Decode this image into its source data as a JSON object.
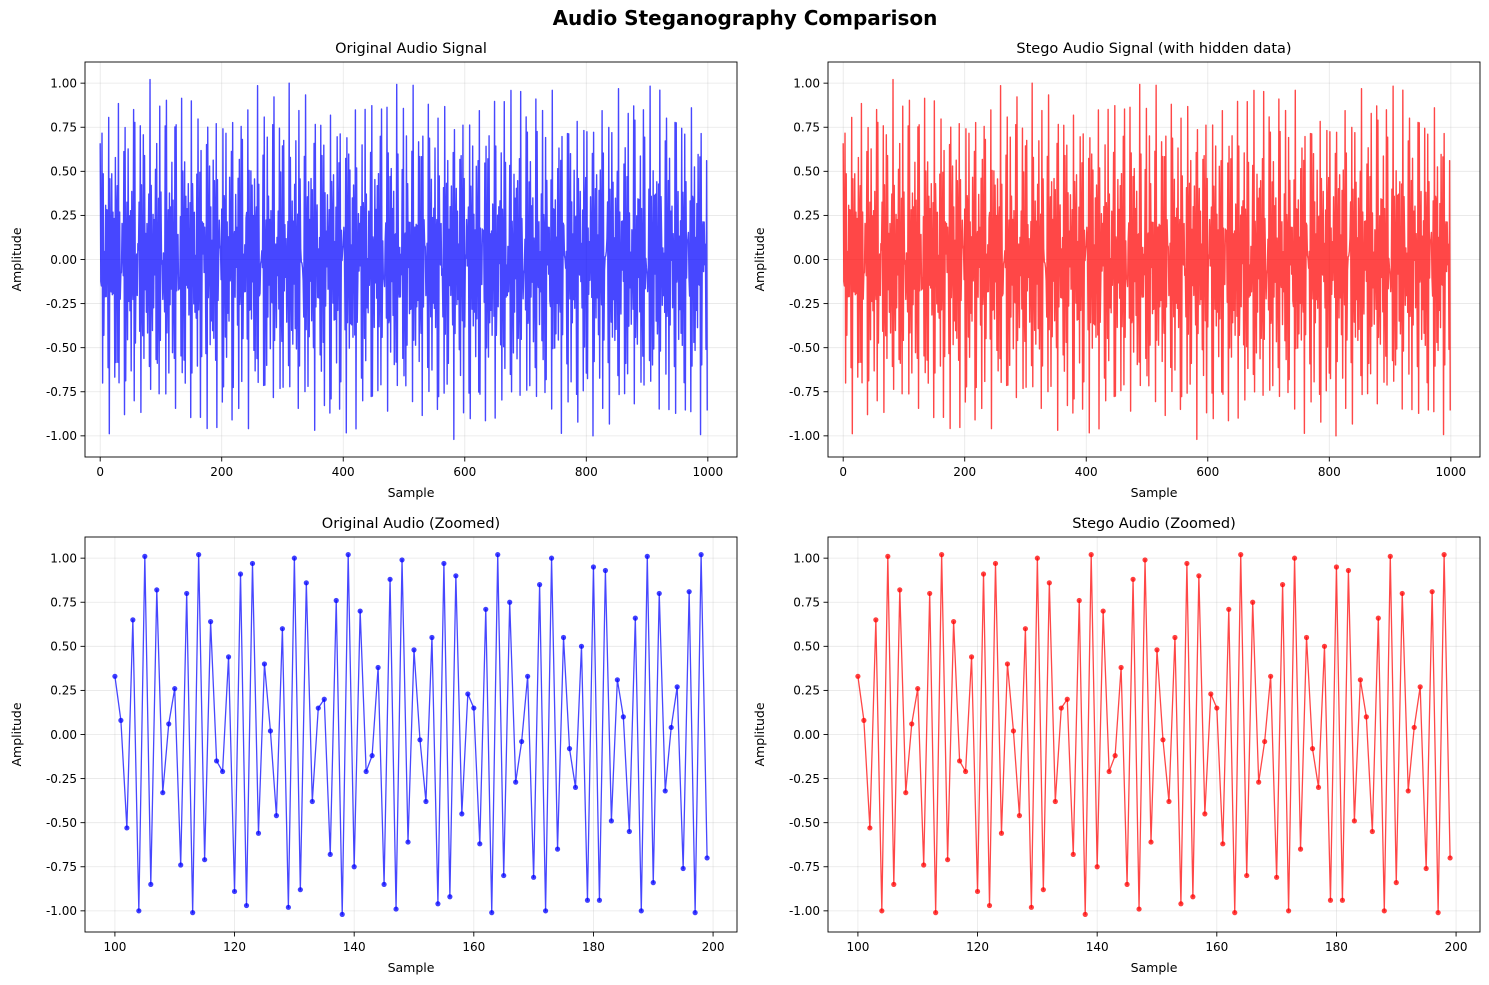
{
  "figure": {
    "title": "Audio Steganography Comparison"
  },
  "chart_data": [
    {
      "type": "line",
      "title": "Original Audio Signal",
      "xlabel": "Sample",
      "ylabel": "Amplitude",
      "xlim": [
        -25,
        1048
      ],
      "ylim": [
        -1.12,
        1.12
      ],
      "xticks": [
        0,
        200,
        400,
        600,
        800,
        1000
      ],
      "yticks": [
        -1.0,
        -0.75,
        -0.5,
        -0.25,
        0.0,
        0.25,
        0.5,
        0.75,
        1.0
      ],
      "grid": true,
      "color": "#0000ff",
      "markers": false,
      "series": [
        {
          "name": "original",
          "generator": "audio",
          "x_start": 0,
          "x_end": 999
        }
      ]
    },
    {
      "type": "line",
      "title": "Stego Audio Signal (with hidden data)",
      "xlabel": "Sample",
      "ylabel": "Amplitude",
      "xlim": [
        -25,
        1048
      ],
      "ylim": [
        -1.12,
        1.12
      ],
      "xticks": [
        0,
        200,
        400,
        600,
        800,
        1000
      ],
      "yticks": [
        -1.0,
        -0.75,
        -0.5,
        -0.25,
        0.0,
        0.25,
        0.5,
        0.75,
        1.0
      ],
      "grid": true,
      "color": "#ff0000",
      "markers": false,
      "series": [
        {
          "name": "stego",
          "generator": "audio",
          "x_start": 0,
          "x_end": 999
        }
      ]
    },
    {
      "type": "line",
      "title": "Original Audio (Zoomed)",
      "xlabel": "Sample",
      "ylabel": "Amplitude",
      "xlim": [
        95,
        204
      ],
      "ylim": [
        -1.12,
        1.12
      ],
      "xticks": [
        100,
        120,
        140,
        160,
        180,
        200
      ],
      "yticks": [
        -1.0,
        -0.75,
        -0.5,
        -0.25,
        0.0,
        0.25,
        0.5,
        0.75,
        1.0
      ],
      "grid": true,
      "color": "#0000ff",
      "markers": true,
      "series": [
        {
          "name": "original_zoom",
          "x_start": 100,
          "values": [
            0.33,
            0.08,
            -0.53,
            0.65,
            -1.0,
            1.01,
            -0.85,
            0.82,
            -0.33,
            0.06,
            0.26,
            -0.74,
            0.8,
            -1.01,
            1.02,
            -0.71,
            0.64,
            -0.15,
            -0.21,
            0.44,
            -0.89,
            0.91,
            -0.97,
            0.97,
            -0.56,
            0.4,
            0.02,
            -0.46,
            0.6,
            -0.98,
            1.0,
            -0.88,
            0.86,
            -0.38,
            0.15,
            0.2,
            -0.68,
            0.76,
            -1.02,
            1.02,
            -0.75,
            0.7,
            -0.21,
            -0.12,
            0.38,
            -0.85,
            0.88,
            -0.99,
            0.99,
            -0.61,
            0.48,
            -0.03,
            -0.38,
            0.55,
            -0.96,
            0.97,
            -0.92,
            0.9,
            -0.45,
            0.23,
            0.15,
            -0.62,
            0.71,
            -1.01,
            1.02,
            -0.8,
            0.75,
            -0.27,
            -0.04,
            0.33,
            -0.81,
            0.85,
            -1.0,
            1.0,
            -0.65,
            0.55,
            -0.08,
            -0.3,
            0.5,
            -0.94,
            0.95,
            -0.94,
            0.93,
            -0.49,
            0.31,
            0.1,
            -0.55,
            0.66,
            -1.0,
            1.01,
            -0.84,
            0.8,
            -0.32,
            0.04,
            0.27,
            -0.76,
            0.81,
            -1.01,
            1.02,
            -0.7
          ]
        }
      ]
    },
    {
      "type": "line",
      "title": "Stego Audio (Zoomed)",
      "xlabel": "Sample",
      "ylabel": "Amplitude",
      "xlim": [
        95,
        204
      ],
      "ylim": [
        -1.12,
        1.12
      ],
      "xticks": [
        100,
        120,
        140,
        160,
        180,
        200
      ],
      "yticks": [
        -1.0,
        -0.75,
        -0.5,
        -0.25,
        0.0,
        0.25,
        0.5,
        0.75,
        1.0
      ],
      "grid": true,
      "color": "#ff0000",
      "markers": true,
      "series": [
        {
          "name": "stego_zoom",
          "x_start": 100,
          "values": [
            0.33,
            0.08,
            -0.53,
            0.65,
            -1.0,
            1.01,
            -0.85,
            0.82,
            -0.33,
            0.06,
            0.26,
            -0.74,
            0.8,
            -1.01,
            1.02,
            -0.71,
            0.64,
            -0.15,
            -0.21,
            0.44,
            -0.89,
            0.91,
            -0.97,
            0.97,
            -0.56,
            0.4,
            0.02,
            -0.46,
            0.6,
            -0.98,
            1.0,
            -0.88,
            0.86,
            -0.38,
            0.15,
            0.2,
            -0.68,
            0.76,
            -1.02,
            1.02,
            -0.75,
            0.7,
            -0.21,
            -0.12,
            0.38,
            -0.85,
            0.88,
            -0.99,
            0.99,
            -0.61,
            0.48,
            -0.03,
            -0.38,
            0.55,
            -0.96,
            0.97,
            -0.92,
            0.9,
            -0.45,
            0.23,
            0.15,
            -0.62,
            0.71,
            -1.01,
            1.02,
            -0.8,
            0.75,
            -0.27,
            -0.04,
            0.33,
            -0.81,
            0.85,
            -1.0,
            1.0,
            -0.65,
            0.55,
            -0.08,
            -0.3,
            0.5,
            -0.94,
            0.95,
            -0.94,
            0.93,
            -0.49,
            0.31,
            0.1,
            -0.55,
            0.66,
            -1.0,
            1.01,
            -0.84,
            0.8,
            -0.32,
            0.04,
            0.27,
            -0.76,
            0.81,
            -1.01,
            1.02,
            -0.7
          ]
        }
      ]
    }
  ]
}
